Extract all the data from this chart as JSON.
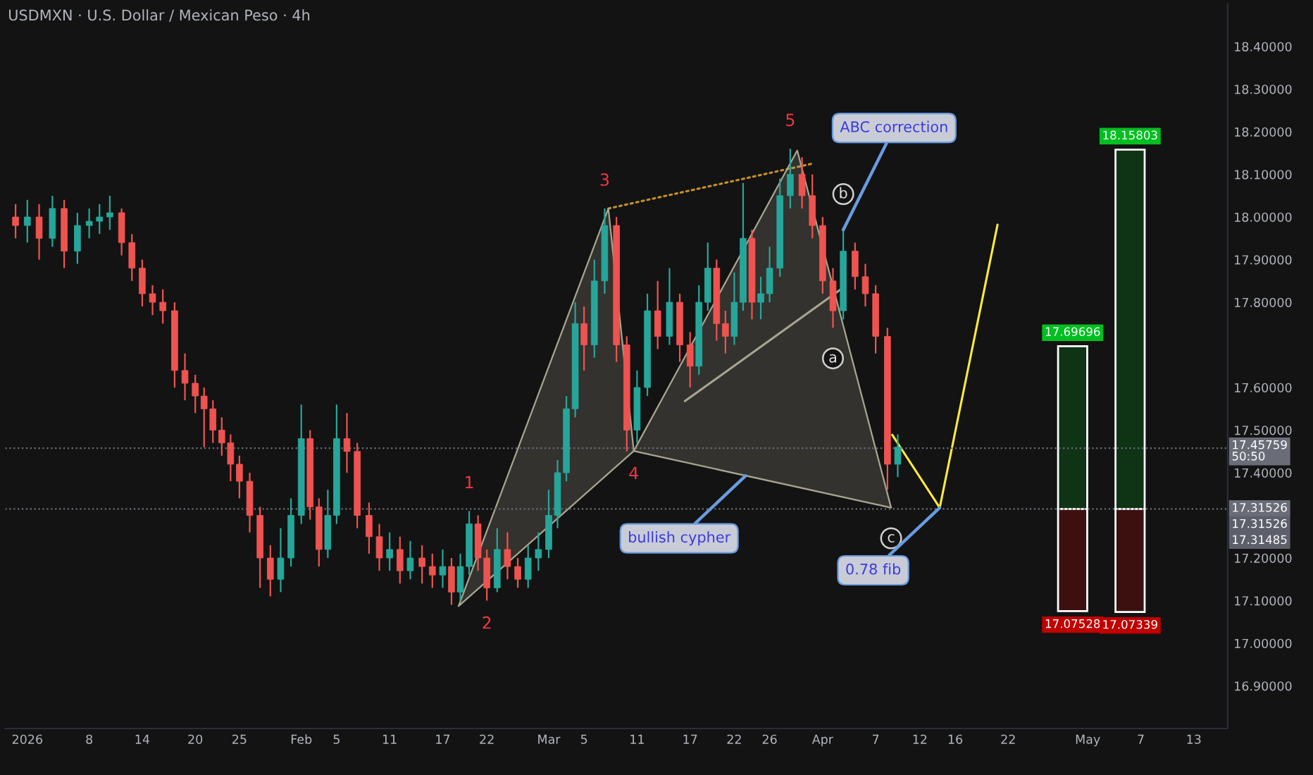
{
  "chart_data": {
    "type": "candlestick",
    "title": "USDMXN · U.S. Dollar / Mexican Peso · 4h",
    "x": [
      "2025-12-30T16:00",
      "2026-01-01T00:00",
      "2026-01-02T08:00",
      "2026-01-03T20:00",
      "2026-01-05T04:00",
      "2026-01-06T16:00",
      "2026-01-08T00:00",
      "2026-01-09T04:00",
      "2026-01-10T08:00",
      "2026-01-11T16:00",
      "2026-01-12T20:00",
      "2026-01-14T00:00",
      "2026-01-15T04:00",
      "2026-01-16T08:00",
      "2026-01-17T16:00",
      "2026-01-18T20:00",
      "2026-01-20T00:00",
      "2026-01-21T00:00",
      "2026-01-22T00:00",
      "2026-01-23T00:00",
      "2026-01-24T00:00",
      "2026-01-25T00:00",
      "2026-01-26T04:00",
      "2026-01-27T08:00",
      "2026-01-28T12:00",
      "2026-01-29T16:00",
      "2026-01-30T20:00",
      "2026-02-01T00:00",
      "2026-02-02T00:00",
      "2026-02-03T00:00",
      "2026-02-04T00:00",
      "2026-02-05T00:00",
      "2026-02-06T04:00",
      "2026-02-07T08:00",
      "2026-02-08T16:00",
      "2026-02-09T20:00",
      "2026-02-11T00:00",
      "2026-02-12T04:00",
      "2026-02-13T08:00",
      "2026-02-14T16:00",
      "2026-02-15T20:00",
      "2026-02-17T00:00",
      "2026-02-18T00:00",
      "2026-02-19T00:00",
      "2026-02-20T00:00",
      "2026-02-21T00:00",
      "2026-02-22T00:00",
      "2026-02-23T04:00",
      "2026-02-24T08:00",
      "2026-02-25T12:00",
      "2026-02-26T16:00",
      "2026-02-27T20:00",
      "2026-03-01T00:00",
      "2026-03-02T00:00",
      "2026-03-03T00:00",
      "2026-03-04T00:00",
      "2026-03-05T00:00",
      "2026-03-06T04:00",
      "2026-03-07T08:00",
      "2026-03-08T16:00",
      "2026-03-09T20:00",
      "2026-03-11T00:00",
      "2026-03-12T04:00",
      "2026-03-13T08:00",
      "2026-03-14T16:00",
      "2026-03-15T20:00",
      "2026-03-17T00:00",
      "2026-03-18T00:00",
      "2026-03-19T00:00",
      "2026-03-20T00:00",
      "2026-03-21T00:00",
      "2026-03-22T00:00",
      "2026-03-23T00:00",
      "2026-03-24T00:00",
      "2026-03-25T00:00",
      "2026-03-26T00:00",
      "2026-03-27T04:00",
      "2026-03-28T08:00",
      "2026-03-29T16:00",
      "2026-03-30T20:00",
      "2026-04-01T00:00",
      "2026-04-02T04:00",
      "2026-04-03T08:00",
      "2026-04-04T16:00",
      "2026-04-05T20:00",
      "2026-04-07T00:00",
      "2026-04-08T08:00",
      "2026-04-09T12:00"
    ],
    "ohlc": [
      [
        18.0,
        18.03,
        17.95,
        17.98
      ],
      [
        17.98,
        18.04,
        17.94,
        18.0
      ],
      [
        18.0,
        18.03,
        17.9,
        17.95
      ],
      [
        17.95,
        18.05,
        17.93,
        18.02
      ],
      [
        18.02,
        18.04,
        17.88,
        17.92
      ],
      [
        17.92,
        18.01,
        17.89,
        17.98
      ],
      [
        17.98,
        18.02,
        17.95,
        17.99
      ],
      [
        17.99,
        18.03,
        17.96,
        18.0
      ],
      [
        18.0,
        18.05,
        17.97,
        18.01
      ],
      [
        18.01,
        18.02,
        17.91,
        17.94
      ],
      [
        17.94,
        17.96,
        17.85,
        17.88
      ],
      [
        17.88,
        17.9,
        17.79,
        17.82
      ],
      [
        17.82,
        17.84,
        17.77,
        17.8
      ],
      [
        17.8,
        17.83,
        17.75,
        17.78
      ],
      [
        17.78,
        17.8,
        17.6,
        17.64
      ],
      [
        17.64,
        17.68,
        17.57,
        17.61
      ],
      [
        17.61,
        17.63,
        17.54,
        17.58
      ],
      [
        17.58,
        17.6,
        17.46,
        17.55
      ],
      [
        17.55,
        17.57,
        17.47,
        17.5
      ],
      [
        17.5,
        17.53,
        17.44,
        17.47
      ],
      [
        17.47,
        17.49,
        17.38,
        17.42
      ],
      [
        17.42,
        17.44,
        17.34,
        17.38
      ],
      [
        17.38,
        17.4,
        17.26,
        17.3
      ],
      [
        17.3,
        17.32,
        17.13,
        17.2
      ],
      [
        17.2,
        17.23,
        17.11,
        17.15
      ],
      [
        17.15,
        17.27,
        17.12,
        17.2
      ],
      [
        17.2,
        17.34,
        17.18,
        17.3
      ],
      [
        17.3,
        17.56,
        17.28,
        17.48
      ],
      [
        17.48,
        17.5,
        17.29,
        17.32
      ],
      [
        17.32,
        17.34,
        17.18,
        17.22
      ],
      [
        17.22,
        17.36,
        17.2,
        17.3
      ],
      [
        17.3,
        17.56,
        17.28,
        17.48
      ],
      [
        17.48,
        17.54,
        17.4,
        17.45
      ],
      [
        17.45,
        17.47,
        17.27,
        17.3
      ],
      [
        17.3,
        17.33,
        17.21,
        17.25
      ],
      [
        17.25,
        17.28,
        17.17,
        17.2
      ],
      [
        17.2,
        17.26,
        17.17,
        17.22
      ],
      [
        17.22,
        17.25,
        17.14,
        17.17
      ],
      [
        17.17,
        17.24,
        17.15,
        17.2
      ],
      [
        17.2,
        17.23,
        17.14,
        17.18
      ],
      [
        17.18,
        17.21,
        17.13,
        17.16
      ],
      [
        17.16,
        17.22,
        17.13,
        17.18
      ],
      [
        17.18,
        17.2,
        17.09,
        17.12
      ],
      [
        17.12,
        17.21,
        17.1,
        17.18
      ],
      [
        17.18,
        17.31,
        17.16,
        17.28
      ],
      [
        17.28,
        17.3,
        17.17,
        17.2
      ],
      [
        17.2,
        17.22,
        17.1,
        17.13
      ],
      [
        17.13,
        17.27,
        17.12,
        17.22
      ],
      [
        17.22,
        17.26,
        17.15,
        17.18
      ],
      [
        17.18,
        17.2,
        17.13,
        17.15
      ],
      [
        17.15,
        17.23,
        17.13,
        17.2
      ],
      [
        17.2,
        17.26,
        17.17,
        17.22
      ],
      [
        17.22,
        17.36,
        17.2,
        17.3
      ],
      [
        17.3,
        17.43,
        17.27,
        17.4
      ],
      [
        17.4,
        17.58,
        17.38,
        17.55
      ],
      [
        17.55,
        17.8,
        17.53,
        17.75
      ],
      [
        17.75,
        17.79,
        17.64,
        17.7
      ],
      [
        17.7,
        17.9,
        17.67,
        17.85
      ],
      [
        17.85,
        18.02,
        17.82,
        17.98
      ],
      [
        17.98,
        18.0,
        17.66,
        17.7
      ],
      [
        17.7,
        17.72,
        17.45,
        17.5
      ],
      [
        17.5,
        17.64,
        17.47,
        17.6
      ],
      [
        17.6,
        17.82,
        17.58,
        17.78
      ],
      [
        17.78,
        17.85,
        17.69,
        17.72
      ],
      [
        17.72,
        17.88,
        17.7,
        17.8
      ],
      [
        17.8,
        17.82,
        17.66,
        17.7
      ],
      [
        17.7,
        17.73,
        17.6,
        17.65
      ],
      [
        17.65,
        17.84,
        17.63,
        17.8
      ],
      [
        17.8,
        17.94,
        17.78,
        17.88
      ],
      [
        17.88,
        17.9,
        17.71,
        17.75
      ],
      [
        17.75,
        17.78,
        17.68,
        17.72
      ],
      [
        17.72,
        17.87,
        17.7,
        17.8
      ],
      [
        17.8,
        18.08,
        17.78,
        17.95
      ],
      [
        17.95,
        17.97,
        17.76,
        17.8
      ],
      [
        17.8,
        17.86,
        17.76,
        17.82
      ],
      [
        17.82,
        17.93,
        17.8,
        17.88
      ],
      [
        17.88,
        18.09,
        17.86,
        18.05
      ],
      [
        18.05,
        18.16,
        18.02,
        18.1
      ],
      [
        18.1,
        18.14,
        18.02,
        18.05
      ],
      [
        18.05,
        18.1,
        17.95,
        17.98
      ],
      [
        17.98,
        18.0,
        17.82,
        17.85
      ],
      [
        17.85,
        17.88,
        17.74,
        17.78
      ],
      [
        17.78,
        17.97,
        17.76,
        17.92
      ],
      [
        17.92,
        17.94,
        17.83,
        17.86
      ],
      [
        17.86,
        17.89,
        17.79,
        17.82
      ],
      [
        17.82,
        17.84,
        17.68,
        17.72
      ],
      [
        17.72,
        17.74,
        17.36,
        17.42
      ],
      [
        17.42,
        17.49,
        17.39,
        17.46
      ]
    ],
    "xlim": [
      "2025-12-29T12:00",
      "2026-05-16T20:00"
    ],
    "ylim": [
      16.8,
      18.5
    ],
    "xticks": [
      {
        "value": "2026-01-01",
        "label": "2026"
      },
      {
        "value": "2026-01-08",
        "label": "8"
      },
      {
        "value": "2026-01-14",
        "label": "14"
      },
      {
        "value": "2026-01-20",
        "label": "20"
      },
      {
        "value": "2026-01-25",
        "label": "25"
      },
      {
        "value": "2026-02-01",
        "label": "Feb"
      },
      {
        "value": "2026-02-05",
        "label": "5"
      },
      {
        "value": "2026-02-11",
        "label": "11"
      },
      {
        "value": "2026-02-17",
        "label": "17"
      },
      {
        "value": "2026-02-22",
        "label": "22"
      },
      {
        "value": "2026-03-01",
        "label": "Mar"
      },
      {
        "value": "2026-03-05",
        "label": "5"
      },
      {
        "value": "2026-03-11",
        "label": "11"
      },
      {
        "value": "2026-03-17",
        "label": "17"
      },
      {
        "value": "2026-03-22",
        "label": "22"
      },
      {
        "value": "2026-03-26",
        "label": "26"
      },
      {
        "value": "2026-04-01",
        "label": "Apr"
      },
      {
        "value": "2026-04-07",
        "label": "7"
      },
      {
        "value": "2026-04-12",
        "label": "12"
      },
      {
        "value": "2026-04-16",
        "label": "16"
      },
      {
        "value": "2026-04-22",
        "label": "22"
      },
      {
        "value": "2026-05-01",
        "label": "May"
      },
      {
        "value": "2026-05-07",
        "label": "7"
      },
      {
        "value": "2026-05-13",
        "label": "13"
      }
    ],
    "yticks": [
      {
        "value": 16.9,
        "label": "16.90000"
      },
      {
        "value": 17.0,
        "label": "17.00000"
      },
      {
        "value": 17.1,
        "label": "17.10000"
      },
      {
        "value": 17.2,
        "label": "17.20000"
      },
      {
        "value": 17.4,
        "label": "17.40000"
      },
      {
        "value": 17.5,
        "label": "17.50000"
      },
      {
        "value": 17.6,
        "label": "17.60000"
      },
      {
        "value": 17.8,
        "label": "17.80000"
      },
      {
        "value": 17.9,
        "label": "17.90000"
      },
      {
        "value": 18.0,
        "label": "18.00000"
      },
      {
        "value": 18.1,
        "label": "18.10000"
      },
      {
        "value": 18.2,
        "label": "18.20000"
      },
      {
        "value": 18.3,
        "label": "18.30000"
      },
      {
        "value": 18.4,
        "label": "18.40000"
      }
    ],
    "series": [
      {
        "type": "area",
        "color": "#a8a690",
        "x": [
          "2026-02-18T19:00",
          "2026-03-07T18:00",
          "2026-03-10T15:00",
          "2026-02-18T19:00"
        ],
        "values": [
          17.087,
          18.02,
          17.451,
          17.087
        ]
      },
      {
        "type": "area",
        "color": "#a8a690",
        "x": [
          "2026-03-10T15:00",
          "2026-03-29T03:00",
          "2026-04-08T18:00",
          "2026-03-10T15:00"
        ],
        "values": [
          17.451,
          18.156,
          17.318,
          17.451
        ]
      },
      {
        "type": "line",
        "color": "#c8902a",
        "line_style": "dotted",
        "x": [
          "2026-03-07T18:00",
          "2026-03-30T19:00"
        ],
        "values": [
          18.02,
          18.125
        ]
      },
      {
        "type": "line",
        "color": "#a8a690",
        "x": [
          "2026-03-16T10:00",
          "2026-04-03T01:00"
        ],
        "values": [
          17.568,
          17.83
        ]
      },
      {
        "type": "line",
        "color": "#ffeb3b",
        "x": [
          "2026-04-08T21:00",
          "2026-04-14T06:00",
          "2026-04-20T19:00"
        ],
        "values": [
          17.489,
          17.318,
          17.982
        ]
      },
      {
        "type": "bar",
        "color": "#0f3315",
        "x": [
          "2026-04-29T07:00",
          "2026-05-05T19:00"
        ],
        "base": [
          17.31526,
          17.31526
        ],
        "values": [
          0.3817,
          0.84277
        ],
        "value_labels": [
          "17.69696",
          "18.15803"
        ]
      },
      {
        "type": "bar",
        "color": "#3d1010",
        "x": [
          "2026-04-29T07:00",
          "2026-05-05T19:00"
        ],
        "base": [
          17.31526,
          17.31526
        ],
        "values": [
          -0.23998,
          -0.24187
        ],
        "value_labels": [
          "17.07528",
          "17.07339"
        ]
      }
    ],
    "ref_lines": [
      {
        "axis": "y",
        "value": 17.45759,
        "label": "17.45759\n50:50",
        "color": "#6a6d78",
        "line_style": "dotted"
      },
      {
        "axis": "y",
        "value": 17.31526,
        "label": "17.31526",
        "color": "#6a6d78",
        "line_style": "dotted"
      }
    ],
    "annotations": [
      "17.31526",
      "17.31485",
      {
        "text": "1",
        "x": "2026-02-20T00:00",
        "y": 17.31
      },
      {
        "text": "2",
        "x": "2026-02-22T00:00",
        "y": 17.1
      },
      {
        "text": "3",
        "x": "2026-03-07T08:00",
        "y": 18.02
      },
      {
        "text": "4",
        "x": "2026-03-10T15:00",
        "y": 17.451
      },
      {
        "text": "5",
        "x": "2026-03-28T08:00",
        "y": 18.16
      },
      {
        "text": "a",
        "x": "2026-04-02T04:00",
        "y": 17.74
      },
      {
        "text": "b",
        "x": "2026-04-03T08:00",
        "y": 17.97
      },
      {
        "text": "c",
        "x": "2026-04-08T18:00",
        "y": 17.318
      },
      {
        "text": "ABC correction",
        "x": "2026-04-03T08:00",
        "y": 17.97
      },
      {
        "text": "bullish cypher",
        "x": "2026-03-23T07:00",
        "y": 17.393
      },
      {
        "text": "0.78 fib",
        "x": "2026-04-14T06:00",
        "y": 17.318
      }
    ]
  }
}
